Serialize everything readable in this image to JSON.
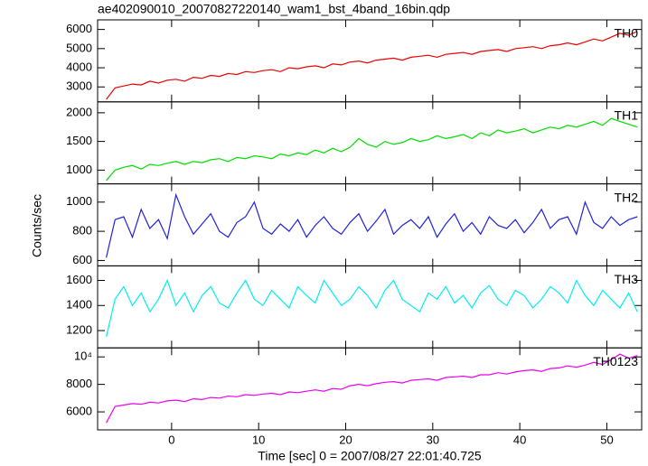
{
  "chart_data": [
    {
      "type": "line",
      "title": "ae402090010_20070827220140_wam1_bst_4band_16bin.qdp",
      "ylabel": "Counts/sec",
      "xlim": [
        -8.5,
        54
      ],
      "ylim": [
        2220,
        6500
      ],
      "yticks": [
        3000,
        4000,
        5000,
        6000
      ],
      "x": [
        -7.5,
        -6.5,
        -5.5,
        -4.5,
        -3.5,
        -2.5,
        -1.5,
        -0.5,
        0.5,
        1.5,
        2.5,
        3.5,
        4.5,
        5.5,
        6.5,
        7.5,
        8.5,
        9.5,
        10.5,
        11.5,
        12.5,
        13.5,
        14.5,
        15.5,
        16.5,
        17.5,
        18.5,
        19.5,
        20.5,
        21.5,
        22.5,
        23.5,
        24.5,
        25.5,
        26.5,
        27.5,
        28.5,
        29.5,
        30.5,
        31.5,
        32.5,
        33.5,
        34.5,
        35.5,
        36.5,
        37.5,
        38.5,
        39.5,
        40.5,
        41.5,
        42.5,
        43.5,
        44.5,
        45.5,
        46.5,
        47.5,
        48.5,
        49.5,
        50.5,
        51.5,
        52.5,
        53.5
      ],
      "series": [
        {
          "name": "TH0",
          "color": "#ee0000",
          "values": [
            2350,
            2950,
            3050,
            3150,
            3100,
            3300,
            3200,
            3350,
            3400,
            3300,
            3500,
            3450,
            3600,
            3550,
            3700,
            3650,
            3800,
            3750,
            3850,
            3900,
            3800,
            4000,
            3950,
            4050,
            4100,
            4000,
            4200,
            4150,
            4300,
            4350,
            4250,
            4400,
            4450,
            4500,
            4400,
            4550,
            4600,
            4650,
            4550,
            4700,
            4750,
            4800,
            4700,
            4850,
            4900,
            4950,
            4850,
            5000,
            5050,
            5100,
            5000,
            5150,
            5200,
            5300,
            5200,
            5350,
            5500,
            5400,
            5600,
            5800,
            5700,
            5900
          ]
        }
      ]
    },
    {
      "type": "line",
      "xlim": [
        -8.5,
        54
      ],
      "ylim": [
        760,
        2190
      ],
      "yticks": [
        1000,
        1500,
        2000
      ],
      "x": [
        -7.5,
        -6.5,
        -5.5,
        -4.5,
        -3.5,
        -2.5,
        -1.5,
        -0.5,
        0.5,
        1.5,
        2.5,
        3.5,
        4.5,
        5.5,
        6.5,
        7.5,
        8.5,
        9.5,
        10.5,
        11.5,
        12.5,
        13.5,
        14.5,
        15.5,
        16.5,
        17.5,
        18.5,
        19.5,
        20.5,
        21.5,
        22.5,
        23.5,
        24.5,
        25.5,
        26.5,
        27.5,
        28.5,
        29.5,
        30.5,
        31.5,
        32.5,
        33.5,
        34.5,
        35.5,
        36.5,
        37.5,
        38.5,
        39.5,
        40.5,
        41.5,
        42.5,
        43.5,
        44.5,
        45.5,
        46.5,
        47.5,
        48.5,
        49.5,
        50.5,
        51.5,
        52.5,
        53.5
      ],
      "series": [
        {
          "name": "TH1",
          "color": "#00dd00",
          "values": [
            820,
            1000,
            1050,
            1080,
            1020,
            1100,
            1080,
            1120,
            1150,
            1100,
            1150,
            1130,
            1180,
            1200,
            1150,
            1220,
            1200,
            1250,
            1230,
            1200,
            1280,
            1250,
            1300,
            1270,
            1350,
            1300,
            1380,
            1320,
            1400,
            1550,
            1450,
            1400,
            1500,
            1450,
            1480,
            1550,
            1500,
            1530,
            1600,
            1550,
            1580,
            1620,
            1550,
            1650,
            1600,
            1700,
            1650,
            1680,
            1720,
            1650,
            1700,
            1750,
            1720,
            1780,
            1750,
            1800,
            1850,
            1780,
            1900,
            1850,
            1800,
            1750
          ]
        }
      ]
    },
    {
      "type": "line",
      "xlim": [
        -8.5,
        54
      ],
      "ylim": [
        563,
        1125
      ],
      "yticks": [
        600,
        800,
        1000
      ],
      "x": [
        -7.5,
        -6.5,
        -5.5,
        -4.5,
        -3.5,
        -2.5,
        -1.5,
        -0.5,
        0.5,
        1.5,
        2.5,
        3.5,
        4.5,
        5.5,
        6.5,
        7.5,
        8.5,
        9.5,
        10.5,
        11.5,
        12.5,
        13.5,
        14.5,
        15.5,
        16.5,
        17.5,
        18.5,
        19.5,
        20.5,
        21.5,
        22.5,
        23.5,
        24.5,
        25.5,
        26.5,
        27.5,
        28.5,
        29.5,
        30.5,
        31.5,
        32.5,
        33.5,
        34.5,
        35.5,
        36.5,
        37.5,
        38.5,
        39.5,
        40.5,
        41.5,
        42.5,
        43.5,
        44.5,
        45.5,
        46.5,
        47.5,
        48.5,
        49.5,
        50.5,
        51.5,
        52.5,
        53.5
      ],
      "series": [
        {
          "name": "TH2",
          "color": "#2222dd",
          "values": [
            620,
            880,
            900,
            760,
            950,
            820,
            880,
            750,
            1050,
            900,
            780,
            850,
            920,
            800,
            760,
            860,
            900,
            1000,
            820,
            780,
            850,
            800,
            880,
            760,
            840,
            900,
            820,
            780,
            860,
            920,
            800,
            870,
            950,
            780,
            840,
            880,
            820,
            900,
            760,
            850,
            920,
            800,
            860,
            780,
            900,
            840,
            820,
            880,
            790,
            860,
            950,
            820,
            880,
            900,
            780,
            1000,
            860,
            820,
            900,
            840,
            880,
            900
          ]
        }
      ]
    },
    {
      "type": "line",
      "xlim": [
        -8.5,
        54
      ],
      "ylim": [
        1062,
        1716
      ],
      "yticks": [
        1200,
        1400,
        1600
      ],
      "x": [
        -7.5,
        -6.5,
        -5.5,
        -4.5,
        -3.5,
        -2.5,
        -1.5,
        -0.5,
        0.5,
        1.5,
        2.5,
        3.5,
        4.5,
        5.5,
        6.5,
        7.5,
        8.5,
        9.5,
        10.5,
        11.5,
        12.5,
        13.5,
        14.5,
        15.5,
        16.5,
        17.5,
        18.5,
        19.5,
        20.5,
        21.5,
        22.5,
        23.5,
        24.5,
        25.5,
        26.5,
        27.5,
        28.5,
        29.5,
        30.5,
        31.5,
        32.5,
        33.5,
        34.5,
        35.5,
        36.5,
        37.5,
        38.5,
        39.5,
        40.5,
        41.5,
        42.5,
        43.5,
        44.5,
        45.5,
        46.5,
        47.5,
        48.5,
        49.5,
        50.5,
        51.5,
        52.5,
        53.5
      ],
      "series": [
        {
          "name": "TH3",
          "color": "#00eeee",
          "values": [
            1150,
            1450,
            1550,
            1400,
            1500,
            1350,
            1450,
            1600,
            1400,
            1500,
            1350,
            1480,
            1550,
            1420,
            1380,
            1500,
            1600,
            1450,
            1400,
            1520,
            1450,
            1380,
            1550,
            1480,
            1420,
            1600,
            1500,
            1400,
            1450,
            1550,
            1480,
            1380,
            1520,
            1600,
            1450,
            1400,
            1350,
            1500,
            1450,
            1550,
            1420,
            1480,
            1380,
            1500,
            1560,
            1450,
            1400,
            1520,
            1480,
            1380,
            1450,
            1550,
            1500,
            1420,
            1600,
            1480,
            1400,
            1520,
            1450,
            1380,
            1500,
            1350
          ]
        }
      ]
    },
    {
      "type": "line",
      "xlabel": "Time [sec] 0 = 2007/08/27 22:01:40.725",
      "xlim": [
        -8.5,
        54
      ],
      "xticks": [
        0,
        10,
        20,
        30,
        40,
        50
      ],
      "ylim": [
        4690,
        10656
      ],
      "yticks": [
        6000,
        8000,
        {
          "value": 10000,
          "label": "10⁴"
        }
      ],
      "x": [
        -7.5,
        -6.5,
        -5.5,
        -4.5,
        -3.5,
        -2.5,
        -1.5,
        -0.5,
        0.5,
        1.5,
        2.5,
        3.5,
        4.5,
        5.5,
        6.5,
        7.5,
        8.5,
        9.5,
        10.5,
        11.5,
        12.5,
        13.5,
        14.5,
        15.5,
        16.5,
        17.5,
        18.5,
        19.5,
        20.5,
        21.5,
        22.5,
        23.5,
        24.5,
        25.5,
        26.5,
        27.5,
        28.5,
        29.5,
        30.5,
        31.5,
        32.5,
        33.5,
        34.5,
        35.5,
        36.5,
        37.5,
        38.5,
        39.5,
        40.5,
        41.5,
        42.5,
        43.5,
        44.5,
        45.5,
        46.5,
        47.5,
        48.5,
        49.5,
        50.5,
        51.5,
        52.5,
        53.5
      ],
      "series": [
        {
          "name": "TH0123",
          "color": "#ee00ee",
          "values": [
            5200,
            6400,
            6500,
            6600,
            6550,
            6700,
            6650,
            6800,
            6850,
            6750,
            6950,
            6900,
            7050,
            7000,
            7150,
            7100,
            7250,
            7200,
            7300,
            7350,
            7250,
            7450,
            7400,
            7500,
            7600,
            7500,
            7700,
            7650,
            7900,
            8000,
            7900,
            8050,
            8150,
            8200,
            8100,
            8300,
            8350,
            8400,
            8300,
            8500,
            8550,
            8600,
            8500,
            8700,
            8700,
            8850,
            8750,
            8900,
            9000,
            9050,
            8950,
            9150,
            9200,
            9350,
            9250,
            9400,
            9600,
            9450,
            9800,
            10200,
            9900,
            10100
          ]
        }
      ]
    }
  ]
}
